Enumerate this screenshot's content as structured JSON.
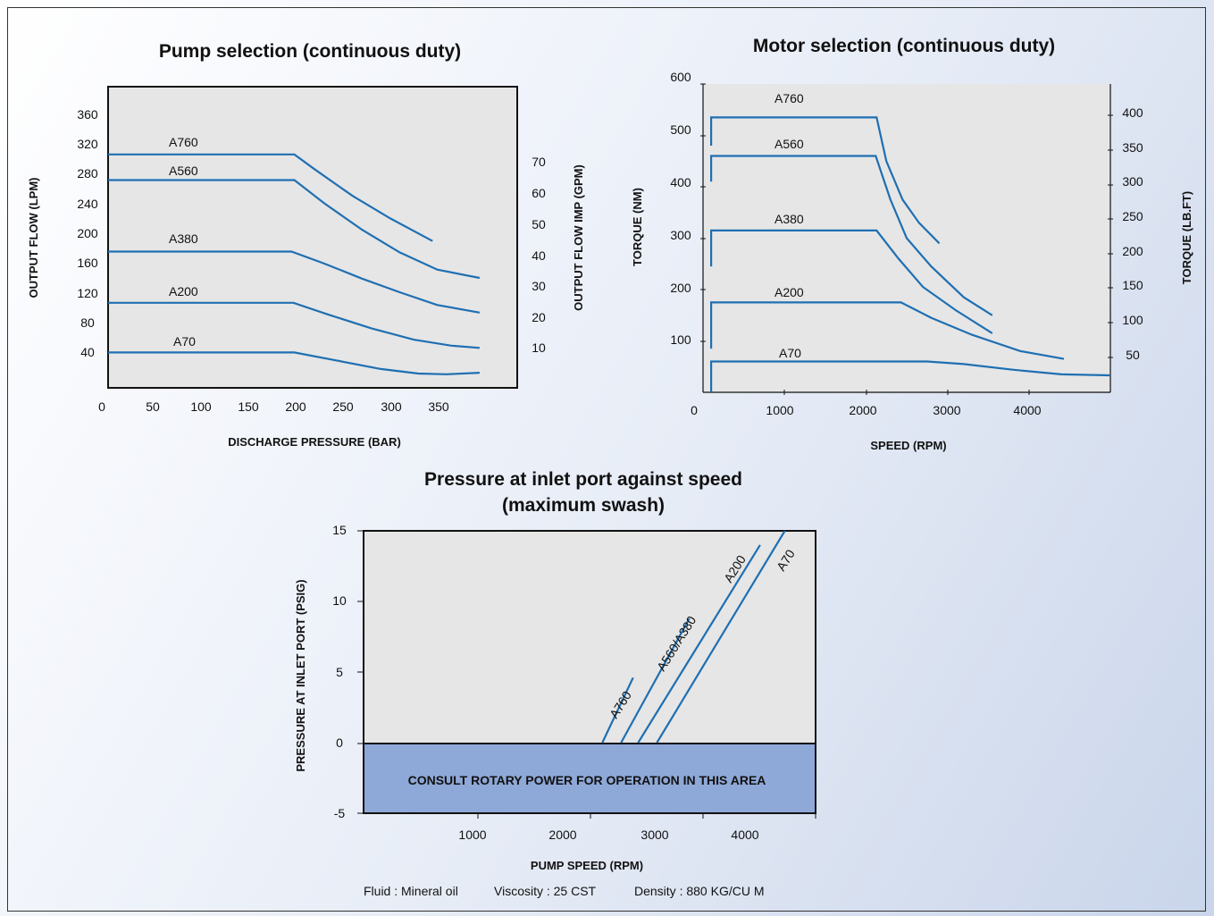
{
  "colors": {
    "curve": "#1f6fb2",
    "plot_bg": "#e6e6e6",
    "consult_area": "#8ea8d8"
  },
  "chart_data": [
    {
      "id": "pump",
      "type": "line",
      "title": "Pump selection (continuous duty)",
      "xlabel": "DISCHARGE PRESSURE (BAR)",
      "ylabel": "OUTPUT FLOW (LPM)",
      "y2label": "OUTPUT FLOW IMP (GPM)",
      "xlim": [
        0,
        435
      ],
      "ylim": [
        0,
        400
      ],
      "xticks": [
        "0",
        "50",
        "100",
        "150",
        "200",
        "250",
        "300",
        "350"
      ],
      "yticks": [
        "40",
        "80",
        "120",
        "160",
        "200",
        "240",
        "280",
        "320",
        "360"
      ],
      "y2ticks": [
        "10",
        "20",
        "30",
        "40",
        "50",
        "60",
        "70"
      ],
      "series": [
        {
          "name": "A760",
          "points": [
            [
              0,
              310
            ],
            [
              198,
              310
            ],
            [
              220,
              290
            ],
            [
              260,
              255
            ],
            [
              300,
              225
            ],
            [
              345,
              195
            ]
          ]
        },
        {
          "name": "A560",
          "points": [
            [
              0,
              276
            ],
            [
              198,
              276
            ],
            [
              230,
              245
            ],
            [
              270,
              210
            ],
            [
              310,
              180
            ],
            [
              350,
              157
            ],
            [
              395,
              146
            ]
          ]
        },
        {
          "name": "A380",
          "points": [
            [
              0,
              181
            ],
            [
              195,
              181
            ],
            [
              230,
              165
            ],
            [
              270,
              145
            ],
            [
              310,
              127
            ],
            [
              350,
              110
            ],
            [
              395,
              100
            ]
          ]
        },
        {
          "name": "A200",
          "points": [
            [
              0,
              113
            ],
            [
              197,
              113
            ],
            [
              235,
              97
            ],
            [
              280,
              79
            ],
            [
              325,
              64
            ],
            [
              365,
              56
            ],
            [
              395,
              53
            ]
          ]
        },
        {
          "name": "A70",
          "points": [
            [
              0,
              47
            ],
            [
              198,
              47
            ],
            [
              240,
              37
            ],
            [
              290,
              25
            ],
            [
              330,
              19
            ],
            [
              360,
              18
            ],
            [
              395,
              20
            ]
          ]
        }
      ]
    },
    {
      "id": "motor",
      "type": "line",
      "title": "Motor selection (continuous duty)",
      "xlabel": "SPEED (RPM)",
      "ylabel": "TORQUE (NM)",
      "y2label": "TORQUE (LB.FT)",
      "xlim": [
        0,
        5000
      ],
      "ylim": [
        0,
        600
      ],
      "xticks": [
        "0",
        "1000",
        "2000",
        "3000",
        "4000"
      ],
      "yticks": [
        "100",
        "200",
        "300",
        "400",
        "500",
        "600"
      ],
      "y2ticks": [
        "50",
        "100",
        "150",
        "200",
        "250",
        "300",
        "350",
        "400"
      ],
      "series": [
        {
          "name": "A760",
          "points": [
            [
              100,
              480
            ],
            [
              100,
              535
            ],
            [
              2130,
              535
            ],
            [
              2250,
              450
            ],
            [
              2450,
              375
            ],
            [
              2650,
              330
            ],
            [
              2900,
              290
            ]
          ]
        },
        {
          "name": "A560",
          "points": [
            [
              100,
              410
            ],
            [
              100,
              460
            ],
            [
              2120,
              460
            ],
            [
              2300,
              375
            ],
            [
              2500,
              300
            ],
            [
              2800,
              245
            ],
            [
              3200,
              185
            ],
            [
              3550,
              150
            ]
          ]
        },
        {
          "name": "A380",
          "points": [
            [
              100,
              245
            ],
            [
              100,
              315
            ],
            [
              2130,
              315
            ],
            [
              2400,
              260
            ],
            [
              2700,
              205
            ],
            [
              3100,
              160
            ],
            [
              3550,
              115
            ]
          ]
        },
        {
          "name": "A200",
          "points": [
            [
              100,
              85
            ],
            [
              100,
              175
            ],
            [
              2430,
              175
            ],
            [
              2800,
              145
            ],
            [
              3300,
              112
            ],
            [
              3900,
              80
            ],
            [
              4430,
              65
            ]
          ]
        },
        {
          "name": "A70",
          "points": [
            [
              100,
              0
            ],
            [
              100,
              60
            ],
            [
              2750,
              60
            ],
            [
              3200,
              55
            ],
            [
              3800,
              44
            ],
            [
              4400,
              35
            ],
            [
              4990,
              33
            ]
          ]
        }
      ]
    },
    {
      "id": "inlet",
      "type": "line",
      "title": "Pressure at inlet port against speed (maximum swash)",
      "xlabel": "PUMP SPEED (RPM)",
      "ylabel": "PRESSURE AT INLET PORT (PSIG)",
      "xlim": [
        -300,
        5000
      ],
      "ylim": [
        -5,
        15
      ],
      "xticks": [
        "1000",
        "2000",
        "3000",
        "4000"
      ],
      "yticks": [
        "15",
        "10",
        "5",
        "0",
        "-5"
      ],
      "series": [
        {
          "name": "A760",
          "points": [
            [
              2500,
              0
            ],
            [
              2860,
              4.6
            ]
          ]
        },
        {
          "name": "A560/A380",
          "points": [
            [
              2720,
              0
            ],
            [
              3520,
              8.8
            ]
          ]
        },
        {
          "name": "A200",
          "points": [
            [
              2920,
              0
            ],
            [
              4350,
              14
            ]
          ]
        },
        {
          "name": "A70",
          "points": [
            [
              3140,
              0
            ],
            [
              4640,
              15
            ]
          ]
        }
      ],
      "region_label": "CONSULT ROTARY POWER FOR OPERATION IN THIS AREA"
    }
  ],
  "footer": {
    "fluid": "Fluid : Mineral oil",
    "viscosity": "Viscosity : 25 CST",
    "density": "Density : 880 KG/CU M"
  }
}
